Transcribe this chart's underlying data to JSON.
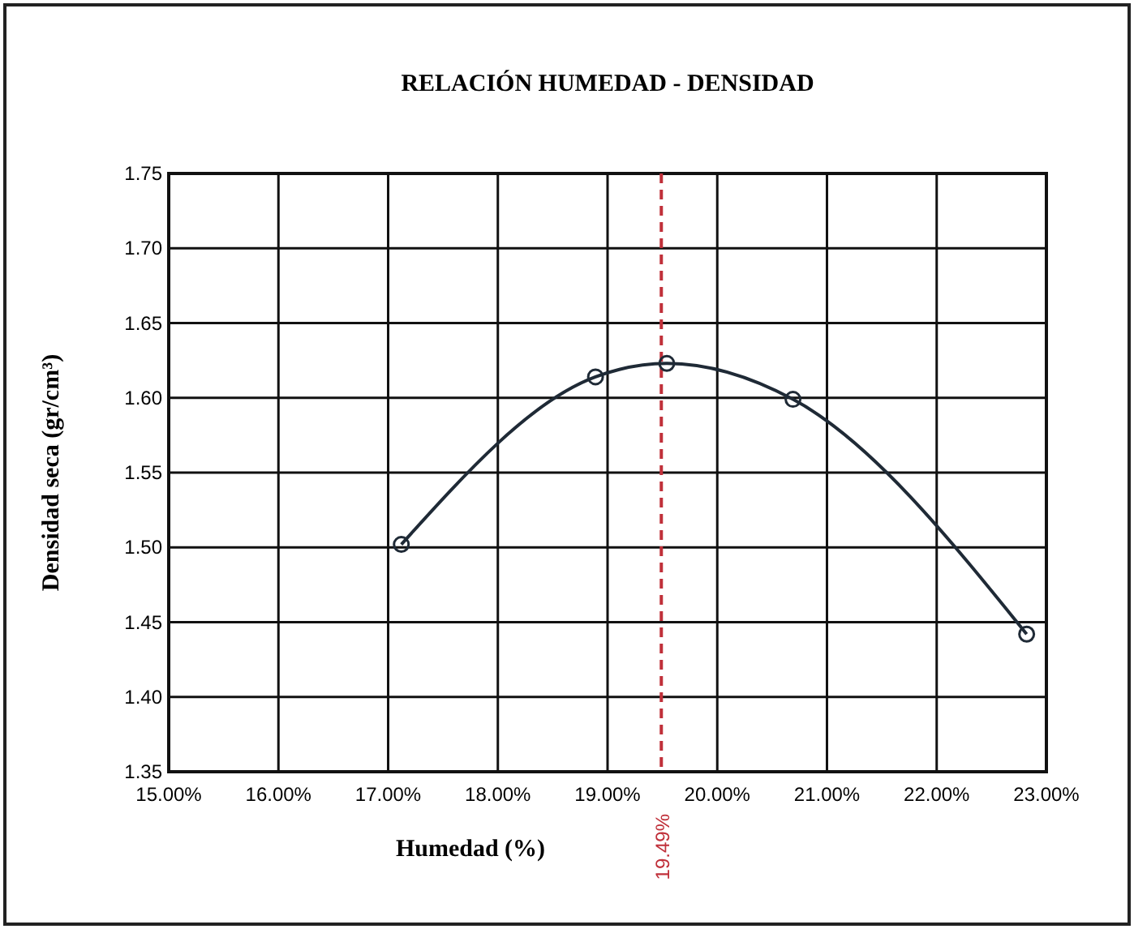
{
  "chart_data": {
    "type": "line",
    "title": "RELACIÓN HUMEDAD - DENSIDAD",
    "xlabel": "Humedad (%)",
    "ylabel": "Densidad seca (gr/cm³)",
    "x": [
      17.12,
      18.89,
      19.54,
      20.69,
      22.82
    ],
    "series": [
      {
        "color": "#1f2a36",
        "values": [
          1.502,
          1.614,
          1.623,
          1.599,
          1.442
        ]
      }
    ],
    "marker": "circle",
    "line_style": "solid",
    "grid": true,
    "xlim": [
      15,
      23
    ],
    "ylim": [
      1.35,
      1.75
    ],
    "xticks": [
      {
        "value": 15,
        "label": "15.00%"
      },
      {
        "value": 16,
        "label": "16.00%"
      },
      {
        "value": 17,
        "label": "17.00%"
      },
      {
        "value": 18,
        "label": "18.00%"
      },
      {
        "value": 19,
        "label": "19.00%"
      },
      {
        "value": 20,
        "label": "20.00%"
      },
      {
        "value": 21,
        "label": "21.00%"
      },
      {
        "value": 22,
        "label": "22.00%"
      },
      {
        "value": 23,
        "label": "23.00%"
      }
    ],
    "yticks": [
      {
        "value": 1.35,
        "label": "1.35"
      },
      {
        "value": 1.4,
        "label": "1.40"
      },
      {
        "value": 1.45,
        "label": "1.45"
      },
      {
        "value": 1.5,
        "label": "1.50"
      },
      {
        "value": 1.55,
        "label": "1.55"
      },
      {
        "value": 1.6,
        "label": "1.60"
      },
      {
        "value": 1.65,
        "label": "1.65"
      },
      {
        "value": 1.7,
        "label": "1.70"
      },
      {
        "value": 1.75,
        "label": "1.75"
      }
    ],
    "ref_lines": [
      {
        "axis": "x",
        "value": 19.49,
        "label": "19.49%",
        "color": "#c0303a",
        "line_style": "dashed"
      }
    ]
  }
}
